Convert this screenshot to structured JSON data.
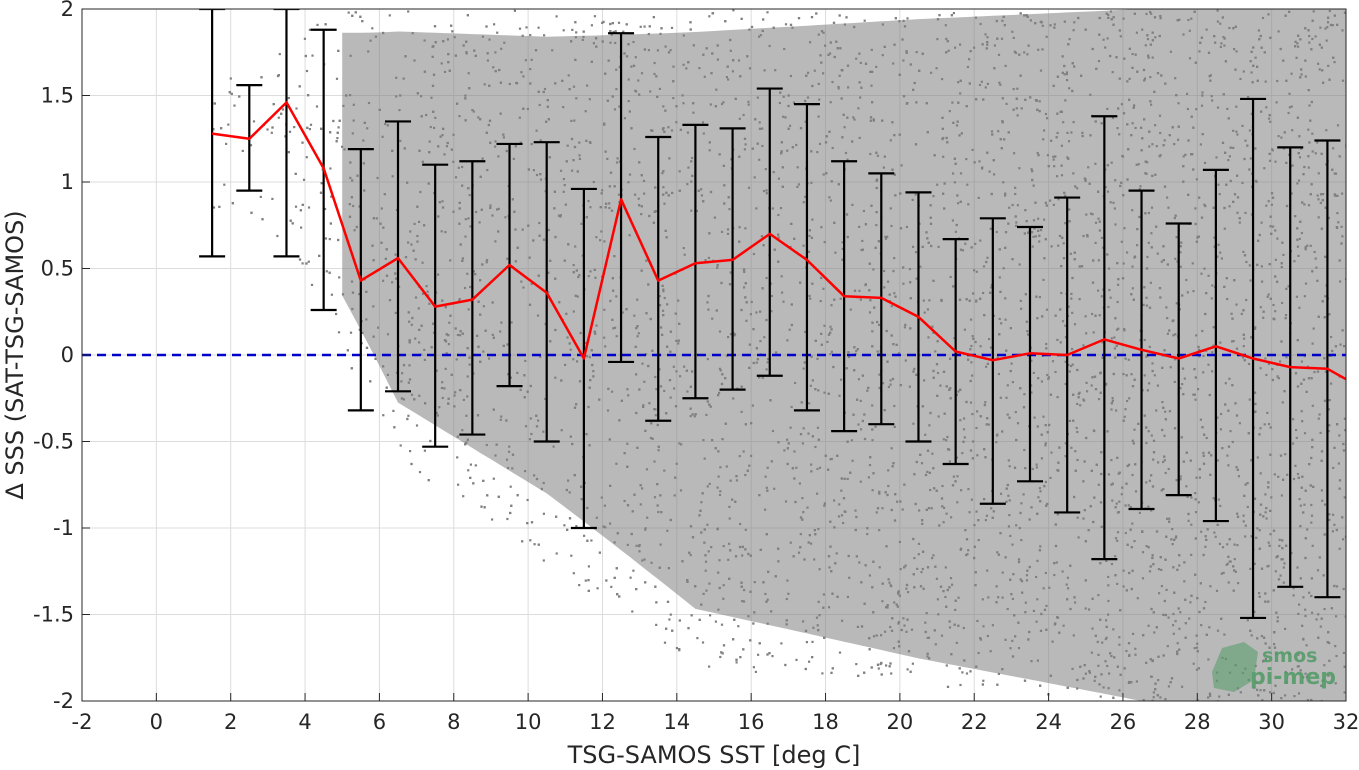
{
  "chart_data": {
    "type": "scatter",
    "title": "",
    "xlabel": "TSG-SAMOS SST [deg C]",
    "ylabel": "Δ SSS (SAT-TSG-SAMOS)",
    "xlim": [
      -2,
      32
    ],
    "ylim": [
      -2,
      2
    ],
    "xticks": [
      -2,
      0,
      2,
      4,
      6,
      8,
      10,
      12,
      14,
      16,
      18,
      20,
      22,
      24,
      26,
      28,
      30,
      32
    ],
    "xtick_labels": [
      "-2",
      "0",
      "2",
      "4",
      "6",
      "8",
      "10",
      "12",
      "14",
      "16",
      "18",
      "20",
      "22",
      "24",
      "26",
      "28",
      "30",
      "32"
    ],
    "yticks": [
      -2,
      -1.5,
      -1,
      -0.5,
      0,
      0.5,
      1,
      1.5,
      2
    ],
    "ytick_labels": [
      "-2",
      "-1.5",
      "-1",
      "-0.5",
      "0",
      "0.5",
      "1",
      "1.5",
      "2"
    ],
    "grid": true,
    "legend": "none",
    "colors": {
      "scatter": "#808080",
      "mean_line": "#ff0000",
      "error_bars": "#000000",
      "zero_line": "#0000cc"
    },
    "zero_line": {
      "y": 0,
      "style": "dashed"
    },
    "scatter_description_bins": [
      {
        "x": 2.5,
        "min": 0.8,
        "max": 1.7,
        "density": 0.05
      },
      {
        "x": 4.5,
        "min": 0.2,
        "max": 2.0,
        "density": 0.25
      },
      {
        "x": 6.5,
        "min": -0.6,
        "max": 2.0,
        "density": 0.5
      },
      {
        "x": 10.5,
        "min": -1.2,
        "max": 2.0,
        "density": 0.5
      },
      {
        "x": 14.5,
        "min": -1.8,
        "max": 2.0,
        "density": 0.65
      },
      {
        "x": 20.5,
        "min": -1.9,
        "max": 2.0,
        "density": 0.85
      },
      {
        "x": 26.5,
        "min": -2.0,
        "max": 2.0,
        "density": 1.0
      },
      {
        "x": 31.5,
        "min": -2.0,
        "max": 2.0,
        "density": 1.0
      }
    ],
    "series": [
      {
        "x": [
          1.5,
          2.5,
          3.5,
          4.5,
          5.5,
          6.5,
          7.5,
          8.5,
          9.5,
          10.5,
          11.5,
          12.5,
          13.5,
          14.5,
          15.5,
          16.5,
          17.5,
          18.5,
          19.5,
          20.5,
          21.5,
          22.5,
          23.5,
          24.5,
          25.5,
          26.5,
          27.5,
          28.5,
          29.5,
          30.5,
          31.5,
          32.0
        ],
        "mean": [
          1.28,
          1.25,
          1.46,
          1.08,
          0.43,
          0.56,
          0.28,
          0.32,
          0.52,
          0.36,
          -0.02,
          0.9,
          0.43,
          0.53,
          0.55,
          0.7,
          0.55,
          0.34,
          0.33,
          0.22,
          0.02,
          -0.03,
          0.01,
          0.0,
          0.09,
          0.03,
          -0.02,
          0.05,
          -0.02,
          -0.07,
          -0.08,
          -0.14
        ],
        "lower": [
          0.57,
          0.95,
          0.57,
          0.26,
          -0.32,
          -0.21,
          -0.53,
          -0.46,
          -0.18,
          -0.5,
          -1.0,
          -0.04,
          -0.38,
          -0.25,
          -0.2,
          -0.12,
          -0.32,
          -0.44,
          -0.4,
          -0.5,
          -0.63,
          -0.86,
          -0.73,
          -0.91,
          -1.18,
          -0.89,
          -0.81,
          -0.96,
          -1.52,
          -1.34,
          -1.4,
          null
        ],
        "upper": [
          2.0,
          1.56,
          2.0,
          1.88,
          1.19,
          1.35,
          1.1,
          1.12,
          1.22,
          1.23,
          0.96,
          1.86,
          1.26,
          1.33,
          1.31,
          1.54,
          1.45,
          1.12,
          1.05,
          0.94,
          0.67,
          0.79,
          0.74,
          0.91,
          1.38,
          0.95,
          0.76,
          1.07,
          1.48,
          1.2,
          1.24,
          null
        ]
      }
    ],
    "watermark": {
      "line1": "smos",
      "line2": "pi-mep"
    }
  }
}
